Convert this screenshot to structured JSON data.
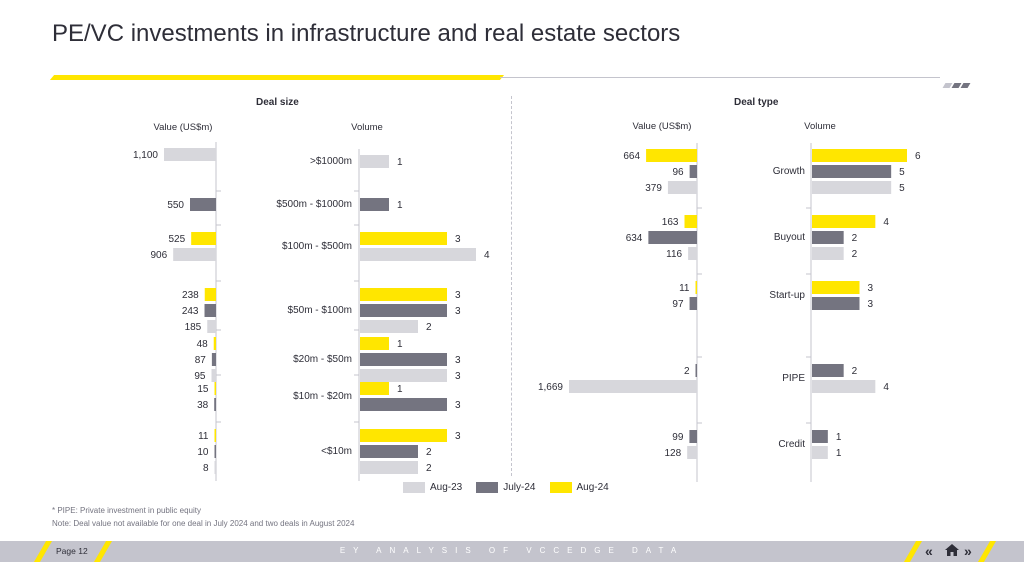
{
  "title": "PE/VC investments in infrastructure and real estate sectors",
  "colors": {
    "aug23": "#d7d7dc",
    "jul24": "#747480",
    "aug24": "#ffe600",
    "text": "#2e2e38",
    "axis": "#c4c4cd"
  },
  "sections": {
    "deal_size": "Deal size",
    "deal_type": "Deal type"
  },
  "legend": [
    {
      "label": "Aug-23",
      "color": "#d7d7dc"
    },
    {
      "label": "July-24",
      "color": "#747480"
    },
    {
      "label": "Aug-24",
      "color": "#ffe600"
    }
  ],
  "notes": {
    "pipe": "* PIPE: Private investment in public equity",
    "deal_value": "Note: Deal value not available for one deal in July 2024 and two deals in August 2024"
  },
  "footer": {
    "page": "Page 12",
    "center": "EY ANALYSIS OF VCCEDGE DATA"
  },
  "chart_data": [
    {
      "type": "bar",
      "orientation": "horizontal-mirrored",
      "title": "Value (US$m)",
      "group": "Deal size",
      "categories": [
        ">$1000m",
        "$500m - $1000m",
        "$100m - $500m",
        "$50m - $100m",
        "$20m - $50m",
        "$10m - $20m",
        "<$10m"
      ],
      "series": [
        {
          "name": "Aug-24",
          "values": [
            null,
            null,
            525,
            238,
            48,
            15,
            11
          ]
        },
        {
          "name": "July-24",
          "values": [
            null,
            550,
            null,
            243,
            87,
            38,
            10
          ]
        },
        {
          "name": "Aug-23",
          "values": [
            1100,
            null,
            906,
            185,
            95,
            null,
            8
          ]
        }
      ],
      "labels": [
        {
          "Aug-24": "",
          "July-24": "",
          "Aug-23": "1,100"
        },
        {
          "Aug-24": "",
          "July-24": "550",
          "Aug-23": ""
        },
        {
          "Aug-24": "525",
          "July-24": "",
          "Aug-23": "906"
        },
        {
          "Aug-24": "238",
          "July-24": "243",
          "Aug-23": "185"
        },
        {
          "Aug-24": "48",
          "July-24": "87",
          "Aug-23": "95"
        },
        {
          "Aug-24": "15",
          "July-24": "38",
          "Aug-23": ""
        },
        {
          "Aug-24": "11",
          "July-24": "10",
          "Aug-23": "8"
        }
      ]
    },
    {
      "type": "bar",
      "orientation": "horizontal",
      "title": "Volume",
      "group": "Deal size",
      "categories": [
        ">$1000m",
        "$500m - $1000m",
        "$100m - $500m",
        "$50m - $100m",
        "$20m - $50m",
        "$10m - $20m",
        "<$10m"
      ],
      "series": [
        {
          "name": "Aug-24",
          "values": [
            null,
            null,
            3,
            3,
            1,
            1,
            3
          ]
        },
        {
          "name": "July-24",
          "values": [
            null,
            1,
            null,
            3,
            3,
            3,
            2
          ]
        },
        {
          "name": "Aug-23",
          "values": [
            1,
            null,
            4,
            2,
            3,
            null,
            2
          ]
        }
      ]
    },
    {
      "type": "bar",
      "orientation": "horizontal-mirrored",
      "title": "Value (US$m)",
      "group": "Deal type",
      "categories": [
        "Growth",
        "Buyout",
        "Start-up",
        "PIPE",
        "Credit"
      ],
      "series": [
        {
          "name": "Aug-24",
          "values": [
            664,
            163,
            11,
            null,
            null
          ]
        },
        {
          "name": "July-24",
          "values": [
            96,
            634,
            97,
            2,
            99
          ]
        },
        {
          "name": "Aug-23",
          "values": [
            379,
            116,
            null,
            1669,
            128
          ]
        }
      ],
      "labels": [
        {
          "Aug-24": "664",
          "July-24": "96",
          "Aug-23": "379"
        },
        {
          "Aug-24": "163",
          "July-24": "634",
          "Aug-23": "116"
        },
        {
          "Aug-24": "11",
          "July-24": "97",
          "Aug-23": ""
        },
        {
          "Aug-24": "",
          "July-24": "2",
          "Aug-23": "1,669"
        },
        {
          "Aug-24": "",
          "July-24": "99",
          "Aug-23": "128"
        }
      ]
    },
    {
      "type": "bar",
      "orientation": "horizontal",
      "title": "Volume",
      "group": "Deal type",
      "categories": [
        "Growth",
        "Buyout",
        "Start-up",
        "PIPE",
        "Credit"
      ],
      "series": [
        {
          "name": "Aug-24",
          "values": [
            6,
            4,
            3,
            null,
            null
          ]
        },
        {
          "name": "July-24",
          "values": [
            5,
            2,
            3,
            2,
            1
          ]
        },
        {
          "name": "Aug-23",
          "values": [
            5,
            2,
            null,
            4,
            1
          ]
        }
      ]
    }
  ]
}
